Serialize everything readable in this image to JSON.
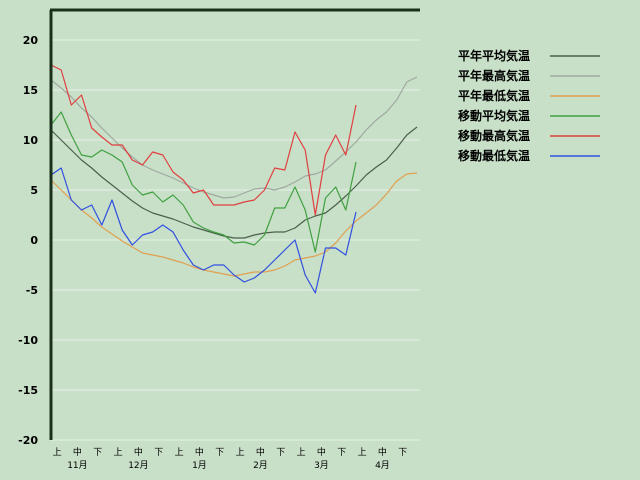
{
  "chart_data": {
    "type": "line",
    "title": "",
    "xlabel": "",
    "ylabel": "",
    "ylim": [
      -20,
      23
    ],
    "yticks": [
      20,
      15,
      10,
      5,
      0,
      -5,
      -10,
      -15,
      -20
    ],
    "x_period_labels": [
      "上",
      "中",
      "下",
      "上",
      "中",
      "下",
      "上",
      "中",
      "下",
      "上",
      "中",
      "下",
      "上",
      "中",
      "下",
      "上",
      "中",
      "下"
    ],
    "x_month_labels": [
      "11月",
      "12月",
      "1月",
      "2月",
      "3月",
      "4月"
    ],
    "grid": true,
    "legend_position": "right",
    "series": [
      {
        "name": "平年平均気温",
        "color": "#4a604a",
        "step": 5,
        "values": [
          11.0,
          10.0,
          9.0,
          8.0,
          7.2,
          6.3,
          5.5,
          4.7,
          3.9,
          3.2,
          2.7,
          2.4,
          2.1,
          1.7,
          1.3,
          1.0,
          0.7,
          0.4,
          0.2,
          0.2,
          0.5,
          0.7,
          0.8,
          0.8,
          1.2,
          2.0,
          2.4,
          2.7,
          3.5,
          4.4,
          5.4,
          6.5,
          7.3,
          8.0,
          9.2,
          10.5,
          11.3
        ]
      },
      {
        "name": "平年最高気温",
        "color": "#a0a8a0",
        "step": 5,
        "values": [
          16.0,
          15.2,
          14.3,
          13.2,
          12.3,
          11.2,
          10.2,
          9.2,
          8.3,
          7.5,
          7.0,
          6.6,
          6.2,
          5.7,
          5.2,
          4.8,
          4.5,
          4.2,
          4.3,
          4.7,
          5.1,
          5.2,
          5.0,
          5.3,
          5.8,
          6.4,
          6.6,
          7.0,
          7.9,
          8.8,
          9.8,
          11.0,
          12.0,
          12.8,
          14.0,
          15.8,
          16.3
        ]
      },
      {
        "name": "平年最低気温",
        "color": "#e0a050",
        "step": 5,
        "values": [
          6.0,
          5.0,
          4.0,
          3.0,
          2.2,
          1.3,
          0.6,
          -0.1,
          -0.7,
          -1.3,
          -1.5,
          -1.7,
          -2.0,
          -2.3,
          -2.7,
          -3.0,
          -3.2,
          -3.4,
          -3.6,
          -3.4,
          -3.2,
          -3.2,
          -3.0,
          -2.6,
          -2.0,
          -1.8,
          -1.6,
          -1.2,
          -0.3,
          0.9,
          1.9,
          2.7,
          3.5,
          4.6,
          5.9,
          6.6,
          6.7
        ]
      },
      {
        "name": "移動平均気温",
        "color": "#40a040",
        "step": 5,
        "values": [
          11.5,
          12.8,
          10.5,
          8.5,
          8.3,
          9.0,
          8.5,
          7.8,
          5.5,
          4.5,
          4.8,
          3.8,
          4.5,
          3.5,
          1.8,
          1.2,
          0.8,
          0.5,
          -0.3,
          -0.2,
          -0.5,
          0.5,
          3.2,
          3.2,
          5.3,
          3.0,
          -1.2,
          4.2,
          5.3,
          3.0,
          7.8
        ]
      },
      {
        "name": "移動最高気温",
        "color": "#e04040",
        "step": 5,
        "values": [
          17.5,
          17.0,
          13.5,
          14.5,
          11.2,
          10.3,
          9.5,
          9.5,
          8.0,
          7.5,
          8.8,
          8.5,
          6.8,
          6.0,
          4.7,
          5.0,
          3.5,
          3.5,
          3.5,
          3.8,
          4.0,
          5.0,
          7.2,
          7.0,
          10.8,
          9.0,
          2.5,
          8.5,
          10.5,
          8.5,
          13.5
        ]
      },
      {
        "name": "移動最低気温",
        "color": "#3050e0",
        "step": 5,
        "values": [
          6.5,
          7.2,
          4.0,
          3.0,
          3.5,
          1.5,
          4.0,
          1.0,
          -0.5,
          0.5,
          0.8,
          1.5,
          0.8,
          -1.0,
          -2.5,
          -3.0,
          -2.5,
          -2.5,
          -3.5,
          -4.2,
          -3.8,
          -3.0,
          -2.0,
          -1.0,
          0.0,
          -3.5,
          -5.3,
          -0.8,
          -0.8,
          -1.5,
          2.8
        ]
      }
    ]
  }
}
